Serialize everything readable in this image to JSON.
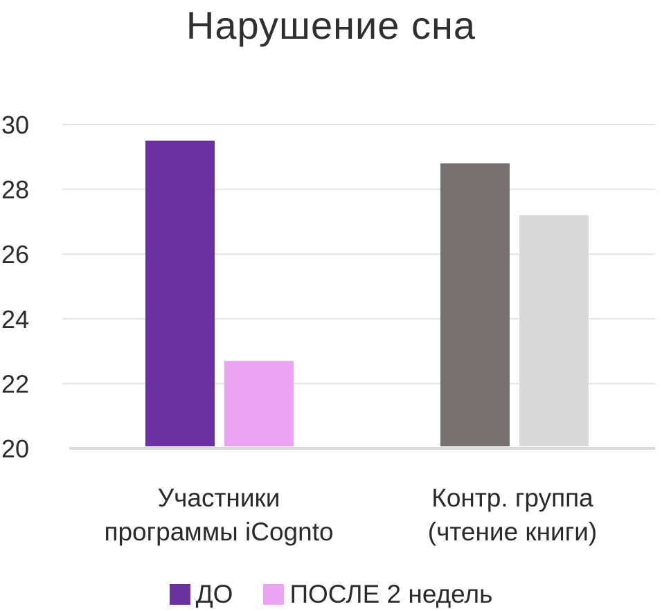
{
  "chart_data": {
    "type": "bar",
    "title": "Нарушение сна",
    "categories": [
      "Участники программы iCognto",
      "Контр. группа (чтение книги)"
    ],
    "category_lines": [
      [
        "Участники",
        "программы iCognto"
      ],
      [
        "Контр. группа",
        "(чтение книги)"
      ]
    ],
    "bars": [
      [
        {
          "series": "ДО",
          "value": 29.5,
          "color": "#6b31a0"
        },
        {
          "series": "ПОСЛЕ 2 недель",
          "value": 22.7,
          "color": "#eba3f4"
        }
      ],
      [
        {
          "series": "ДО",
          "value": 28.8,
          "color": "#767070"
        },
        {
          "series": "ПОСЛЕ 2 недель",
          "value": 27.2,
          "color": "#d9d9d9"
        }
      ]
    ],
    "ylim": [
      20,
      30
    ],
    "yticks": [
      20,
      22,
      24,
      26,
      28,
      30
    ],
    "grid": true,
    "legend": {
      "placement": "bottom",
      "entries": [
        {
          "name": "ДО",
          "color": "#6b31a0"
        },
        {
          "name": "ПОСЛЕ 2 недель",
          "color": "#eba3f4"
        }
      ]
    },
    "xlabel": "",
    "ylabel": ""
  }
}
